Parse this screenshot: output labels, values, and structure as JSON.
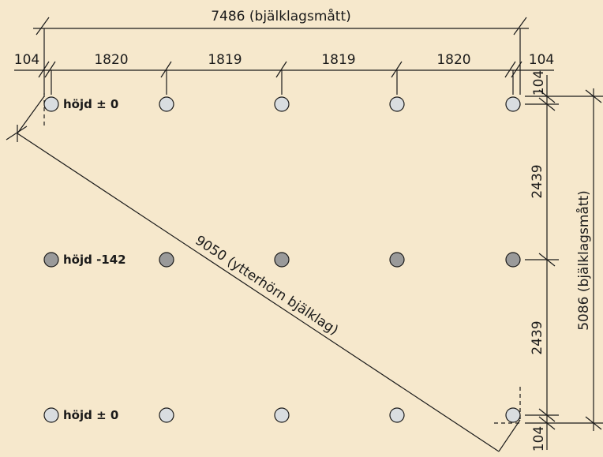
{
  "dimensions": {
    "top_total": "7486 (bjälklagsmått)",
    "top_segments": [
      "104",
      "1820",
      "1819",
      "1819",
      "1820",
      "104"
    ],
    "right_top": "104",
    "right_mid1": "2439",
    "right_mid2": "2439",
    "right_bottom": "104",
    "right_total": "5086 (bjälklagsmått)",
    "diagonal": "9050 (ytterhörn bjälklag)"
  },
  "rows": [
    {
      "label": "höjd ± 0",
      "fill": "#d9dde0"
    },
    {
      "label": "höjd -142",
      "fill": "#9a9a9a"
    },
    {
      "label": "höjd ± 0",
      "fill": "#d9dde0"
    }
  ],
  "colors": {
    "background": "#f6e8cc",
    "line": "#1a1a1a"
  }
}
